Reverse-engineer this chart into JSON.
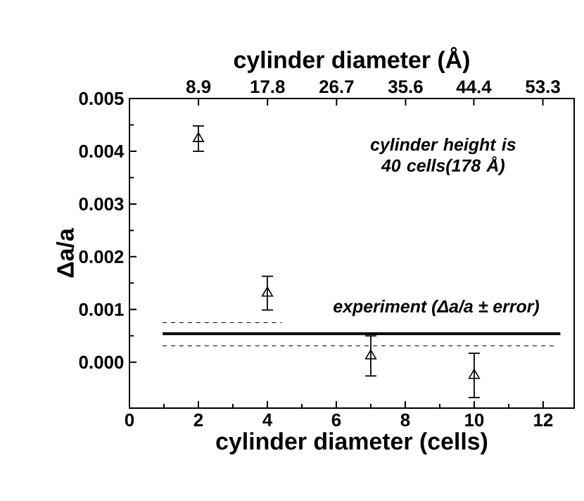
{
  "chart_data": {
    "type": "scatter",
    "xlabel": "cylinder diameter (cells)",
    "ylabel": "Δa/a",
    "x2label": "cylinder diameter (Å)",
    "xlim": [
      0,
      12.9
    ],
    "xticks": [
      0,
      2,
      4,
      6,
      8,
      10,
      12
    ],
    "x2lim": [
      0,
      57.33
    ],
    "x2ticks": [
      8.9,
      17.8,
      26.7,
      35.6,
      44.4,
      53.3
    ],
    "ylim": [
      -0.00087,
      0.005
    ],
    "yticks": [
      {
        "value": 0,
        "label": "0.000"
      },
      0.001,
      0.002,
      0.003,
      0.004,
      0.005
    ],
    "annotations": [
      "cylinder height is 40 cells(178 Å)",
      "experiment (Δa/a ± error)"
    ],
    "series": [
      {
        "color": "#000000",
        "marker": "triangle",
        "x": [
          2,
          4,
          7,
          10
        ],
        "values": [
          0.00424,
          0.00131,
          0.00012,
          -0.00025
        ],
        "errors": [
          0.00024,
          0.00032,
          0.00038,
          0.00042
        ]
      },
      {
        "type": "line",
        "color": "#000000",
        "line_style": "solid",
        "x": [
          0.96,
          12.5
        ],
        "values": [
          0.00054,
          0.00054
        ]
      },
      {
        "type": "line",
        "color": "#000000",
        "line_style": "dashed",
        "x": [
          0.96,
          4.42
        ],
        "values": [
          0.00075,
          0.00075
        ]
      },
      {
        "type": "line",
        "color": "#000000",
        "line_style": "dashed",
        "x": [
          0.96,
          12.4
        ],
        "values": [
          0.00031,
          0.00031
        ]
      }
    ]
  }
}
